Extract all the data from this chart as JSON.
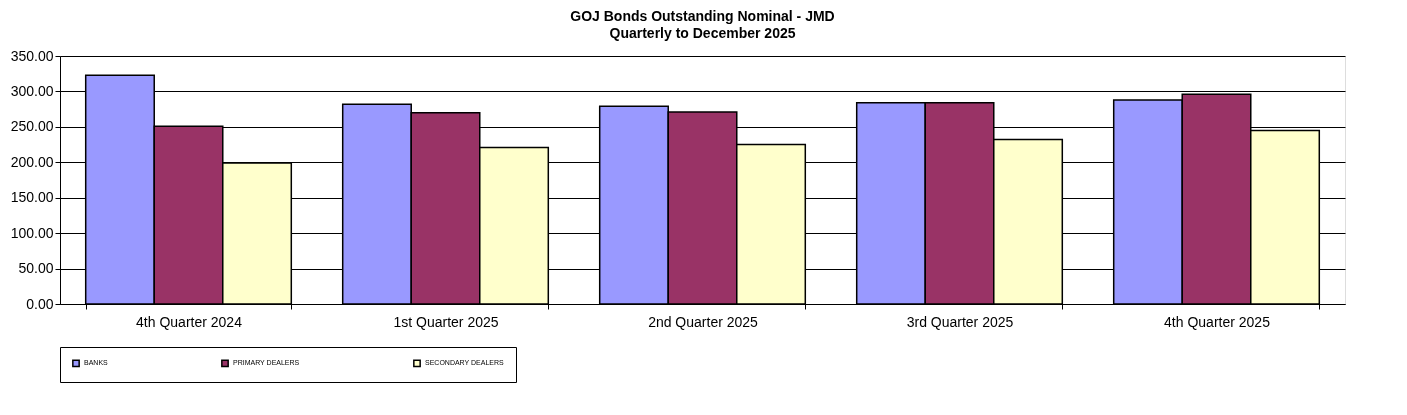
{
  "chart_data": {
    "type": "bar",
    "title": "GOJ Bonds Outstanding Nominal - JMD",
    "subtitle": "Quarterly to December 2025",
    "categories": [
      "4th Quarter 2024",
      "1st Quarter 2025",
      "2nd Quarter 2025",
      "3rd Quarter 2025",
      "4th Quarter 2025"
    ],
    "series": [
      {
        "name": "BANKS",
        "color": "#9999ff",
        "values": [
          323,
          282,
          279,
          284,
          288
        ]
      },
      {
        "name": "PRIMARY DEALERS",
        "color": "#993366",
        "values": [
          251,
          270,
          271,
          284,
          296
        ]
      },
      {
        "name": "SECONDARY DEALERS",
        "color": "#ffffcc",
        "values": [
          199,
          221,
          225,
          232,
          245
        ]
      }
    ],
    "ylim": [
      0,
      350
    ],
    "yticks": [
      {
        "value": 0,
        "label": "0.00"
      },
      {
        "value": 50,
        "label": "50.00"
      },
      {
        "value": 100,
        "label": "100.00"
      },
      {
        "value": 150,
        "label": "150.00"
      },
      {
        "value": 200,
        "label": "200.00"
      },
      {
        "value": 250,
        "label": "250.00"
      },
      {
        "value": 300,
        "label": "300.00"
      },
      {
        "value": 350,
        "label": "350.00"
      }
    ],
    "grid": "y",
    "legend": "bottom"
  }
}
